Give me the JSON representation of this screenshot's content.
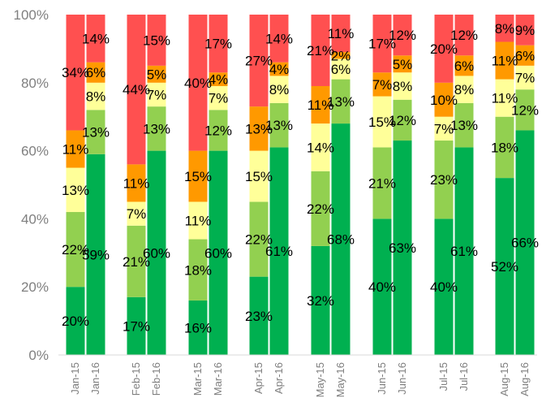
{
  "chart_data": {
    "type": "bar",
    "stacked": true,
    "percent": true,
    "categories": [
      "Jan-15",
      "Jan-16",
      "Feb-15",
      "Feb-16",
      "Mar-15",
      "Mar-16",
      "Apr-15",
      "Apr-16",
      "May-15",
      "May-16",
      "Jun-15",
      "Jun-16",
      "Jul-15",
      "Jul-16",
      "Aug-15",
      "Aug-16"
    ],
    "series": [
      {
        "color": "#00b050",
        "values": [
          20,
          59,
          17,
          60,
          16,
          60,
          23,
          61,
          32,
          68,
          40,
          63,
          40,
          61,
          52,
          66
        ]
      },
      {
        "color": "#92d050",
        "values": [
          22,
          13,
          21,
          13,
          18,
          12,
          22,
          13,
          22,
          13,
          21,
          12,
          23,
          13,
          18,
          12
        ]
      },
      {
        "color": "#ffff99",
        "values": [
          13,
          8,
          7,
          7,
          11,
          7,
          15,
          8,
          14,
          6,
          15,
          8,
          7,
          8,
          11,
          7
        ]
      },
      {
        "color": "#ff9900",
        "values": [
          11,
          6,
          11,
          5,
          15,
          4,
          13,
          4,
          11,
          2,
          7,
          5,
          10,
          6,
          11,
          6
        ]
      },
      {
        "color": "#ff5050",
        "values": [
          34,
          14,
          44,
          15,
          40,
          17,
          27,
          14,
          21,
          11,
          17,
          12,
          20,
          12,
          8,
          9
        ]
      }
    ],
    "y_axis": {
      "min": 0,
      "max": 100,
      "ticks": [
        "0%",
        "20%",
        "40%",
        "60%",
        "80%",
        "100%"
      ]
    },
    "grid": false,
    "legend": "none",
    "label_suffix": "%"
  }
}
